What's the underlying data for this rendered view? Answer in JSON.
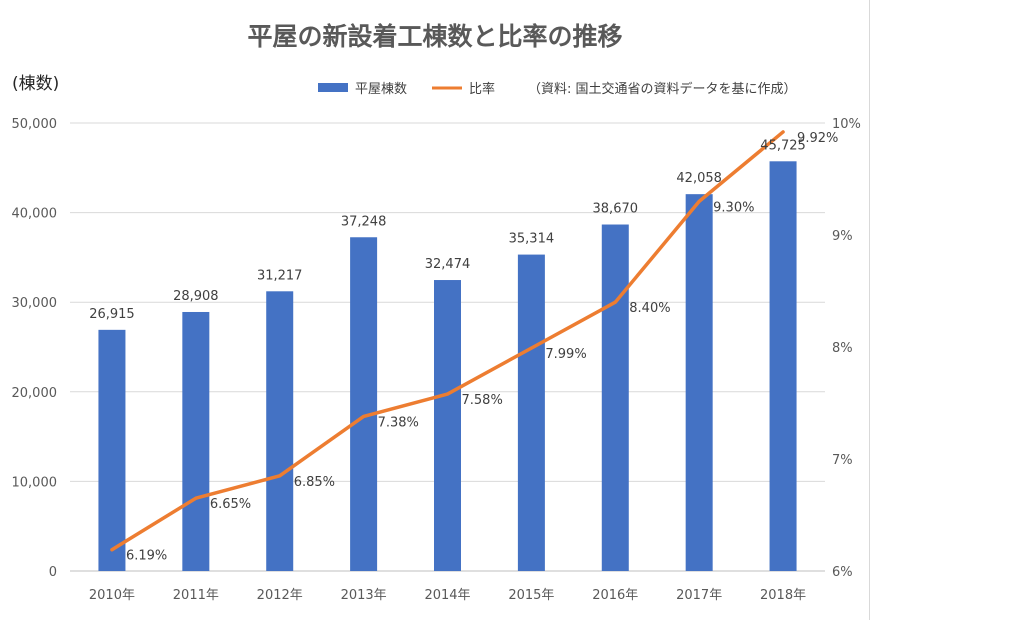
{
  "chart_data": {
    "type": "bar",
    "title": "平屋の新設着工棟数と比率の推移",
    "y_unit_label": "(棟数)",
    "source_note": "（資料: 国土交通省の資料データを基に作成）",
    "categories": [
      "2010年",
      "2011年",
      "2012年",
      "2013年",
      "2014年",
      "2015年",
      "2016年",
      "2017年",
      "2018年"
    ],
    "series": [
      {
        "name": "平屋棟数",
        "type": "bar",
        "axis": "left",
        "color": "#4472c4",
        "values": [
          26915,
          28908,
          31217,
          37248,
          32474,
          35314,
          38670,
          42058,
          45725
        ],
        "labels": [
          "26,915",
          "28,908",
          "31,217",
          "37,248",
          "32,474",
          "35,314",
          "38,670",
          "42,058",
          "45,725"
        ]
      },
      {
        "name": "比率",
        "type": "line",
        "axis": "right",
        "color": "#ed7d31",
        "values": [
          6.19,
          6.65,
          6.85,
          7.38,
          7.58,
          7.99,
          8.4,
          9.3,
          9.92
        ],
        "labels": [
          "6.19%",
          "6.65%",
          "6.85%",
          "7.38%",
          "7.58%",
          "7.99%",
          "8.40%",
          "9.30%",
          "9.92%"
        ]
      }
    ],
    "y_left": {
      "ylim": [
        0,
        50000
      ],
      "ticks": [
        0,
        10000,
        20000,
        30000,
        40000,
        50000
      ],
      "tick_labels": [
        "0",
        "10,000",
        "20,000",
        "30,000",
        "40,000",
        "50,000"
      ]
    },
    "y_right": {
      "ylim": [
        6,
        10
      ],
      "ticks": [
        6,
        7,
        8,
        9,
        10
      ],
      "tick_labels": [
        "6%",
        "7%",
        "8%",
        "9%",
        "10%"
      ]
    },
    "grid": true,
    "legend_position": "top-center"
  }
}
